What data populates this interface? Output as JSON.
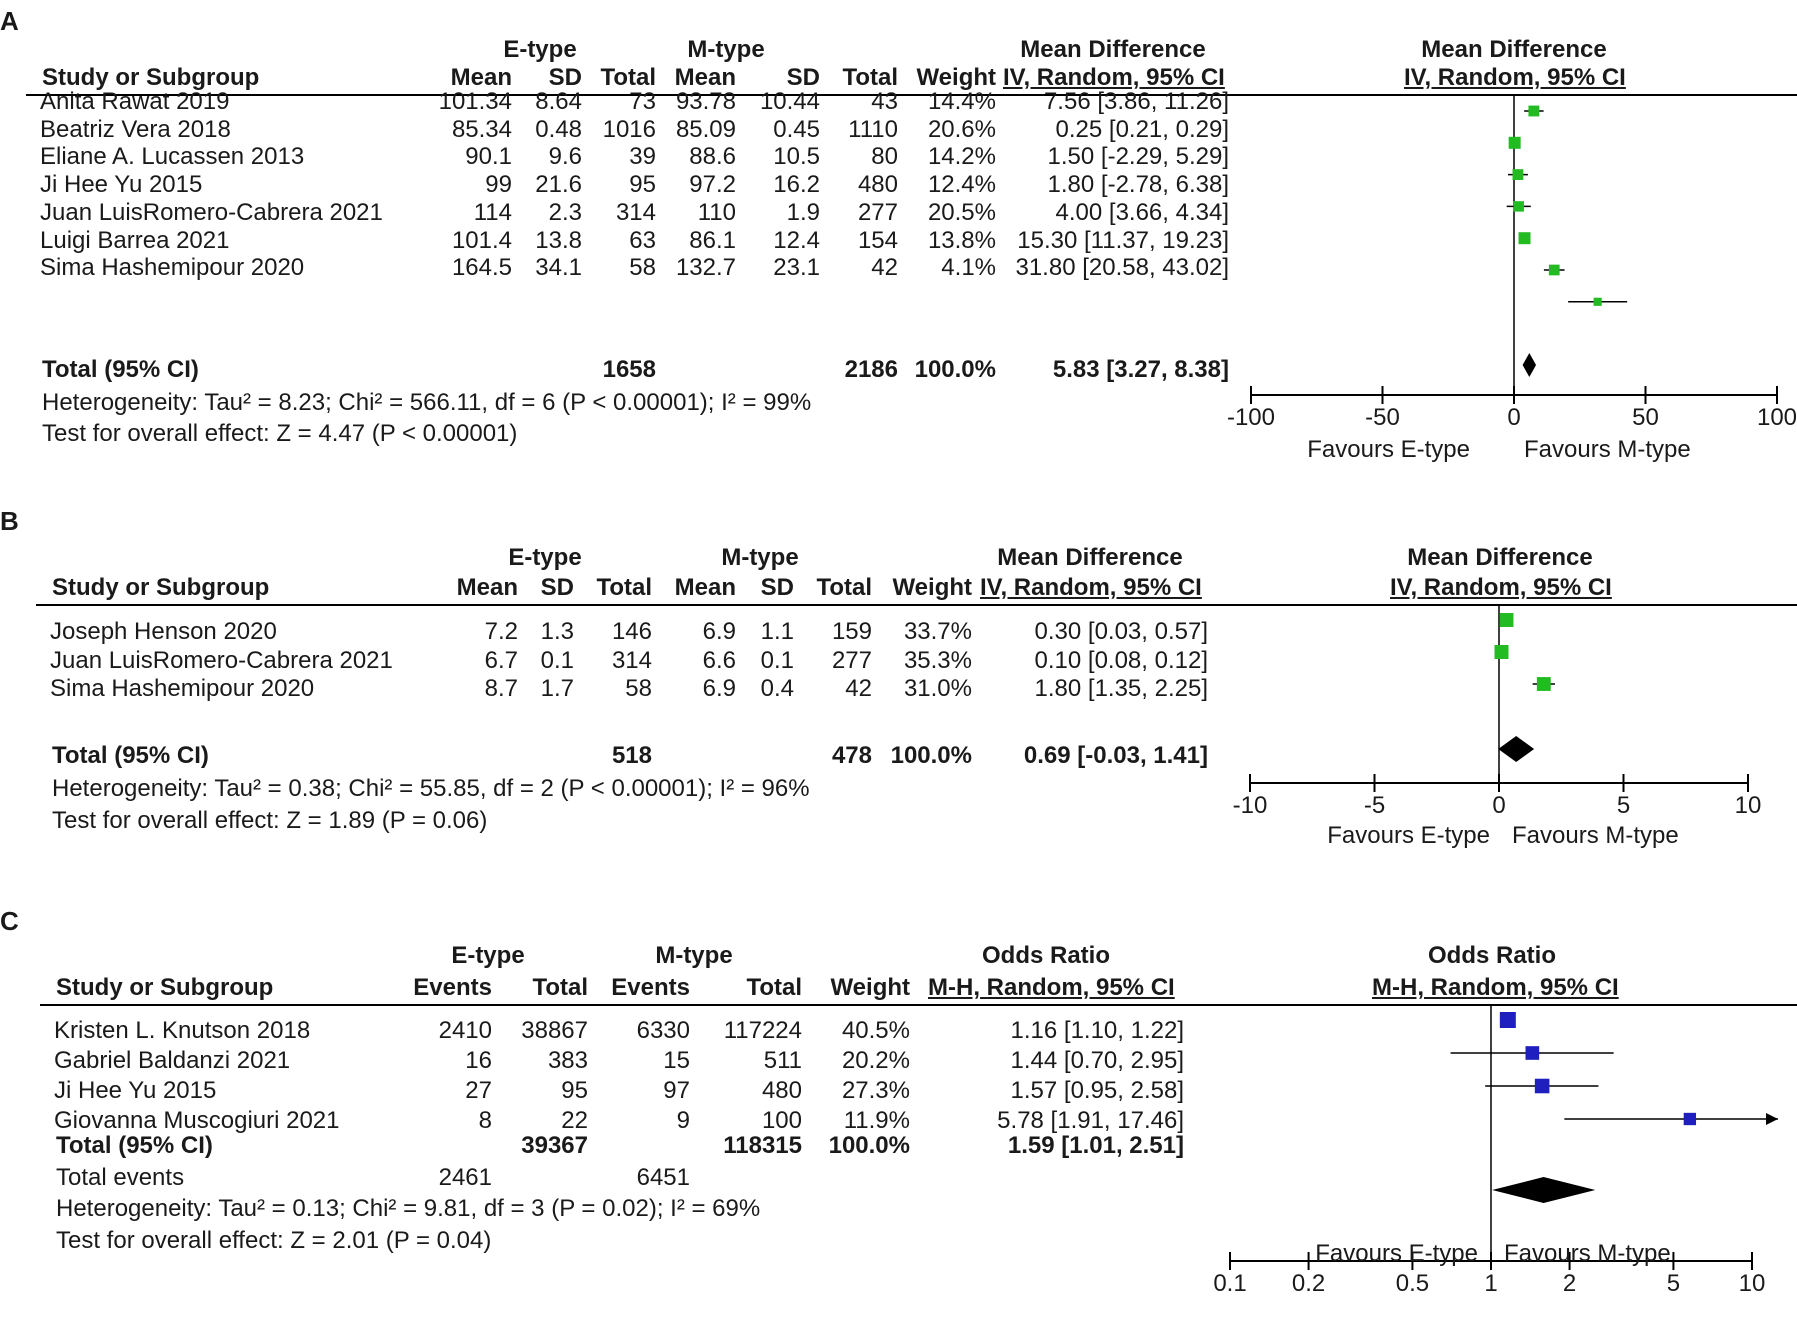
{
  "panelA": {
    "label": "A",
    "group1": "E-type",
    "group2": "M-type",
    "effect_header": "Mean Difference",
    "method": "IV, Random, 95% CI",
    "cols": {
      "study": "Study or Subgroup",
      "mean": "Mean",
      "sd": "SD",
      "total": "Total",
      "weight": "Weight"
    },
    "studies": [
      {
        "name": "Anita Rawat 2019",
        "m1": "101.34",
        "sd1": "8.64",
        "n1": "73",
        "m2": "93.78",
        "sd2": "10.44",
        "n2": "43",
        "weight": "14.4%",
        "ci_text": "7.56 [3.86, 11.26]"
      },
      {
        "name": "Beatriz Vera 2018",
        "m1": "85.34",
        "sd1": "0.48",
        "n1": "1016",
        "m2": "85.09",
        "sd2": "0.45",
        "n2": "1110",
        "weight": "20.6%",
        "ci_text": "0.25 [0.21, 0.29]"
      },
      {
        "name": "Eliane A. Lucassen 2013",
        "m1": "90.1",
        "sd1": "9.6",
        "n1": "39",
        "m2": "88.6",
        "sd2": "10.5",
        "n2": "80",
        "weight": "14.2%",
        "ci_text": "1.50 [-2.29, 5.29]"
      },
      {
        "name": "Ji Hee Yu 2015",
        "m1": "99",
        "sd1": "21.6",
        "n1": "95",
        "m2": "97.2",
        "sd2": "16.2",
        "n2": "480",
        "weight": "12.4%",
        "ci_text": "1.80 [-2.78, 6.38]"
      },
      {
        "name": "Juan LuisRomero-Cabrera 2021",
        "m1": "114",
        "sd1": "2.3",
        "n1": "314",
        "m2": "110",
        "sd2": "1.9",
        "n2": "277",
        "weight": "20.5%",
        "ci_text": "4.00 [3.66, 4.34]"
      },
      {
        "name": "Luigi Barrea 2021",
        "m1": "101.4",
        "sd1": "13.8",
        "n1": "63",
        "m2": "86.1",
        "sd2": "12.4",
        "n2": "154",
        "weight": "13.8%",
        "ci_text": "15.30 [11.37, 19.23]"
      },
      {
        "name": "Sima Hashemipour 2020",
        "m1": "164.5",
        "sd1": "34.1",
        "n1": "58",
        "m2": "132.7",
        "sd2": "23.1",
        "n2": "42",
        "weight": "4.1%",
        "ci_text": "31.80 [20.58, 43.02]"
      }
    ],
    "total": {
      "label": "Total (95% CI)",
      "n1": "1658",
      "n2": "2186",
      "weight": "100.0%",
      "ci_text": "5.83 [3.27, 8.38]"
    },
    "heterogeneity": "Heterogeneity: Tau² = 8.23; Chi² = 566.11, df = 6 (P < 0.00001); I² = 99%",
    "overall": "Test for overall effect: Z = 4.47 (P < 0.00001)",
    "favours_left": "Favours E-type",
    "favours_right": "Favours M-type"
  },
  "panelB": {
    "label": "B",
    "group1": "E-type",
    "group2": "M-type",
    "effect_header": "Mean Difference",
    "method": "IV, Random, 95% CI",
    "cols": {
      "study": "Study or Subgroup",
      "mean": "Mean",
      "sd": "SD",
      "total": "Total",
      "weight": "Weight"
    },
    "studies": [
      {
        "name": "Joseph Henson 2020",
        "m1": "7.2",
        "sd1": "1.3",
        "n1": "146",
        "m2": "6.9",
        "sd2": "1.1",
        "n2": "159",
        "weight": "33.7%",
        "ci_text": "0.30 [0.03, 0.57]"
      },
      {
        "name": "Juan LuisRomero-Cabrera 2021",
        "m1": "6.7",
        "sd1": "0.1",
        "n1": "314",
        "m2": "6.6",
        "sd2": "0.1",
        "n2": "277",
        "weight": "35.3%",
        "ci_text": "0.10 [0.08, 0.12]"
      },
      {
        "name": "Sima Hashemipour 2020",
        "m1": "8.7",
        "sd1": "1.7",
        "n1": "58",
        "m2": "6.9",
        "sd2": "0.4",
        "n2": "42",
        "weight": "31.0%",
        "ci_text": "1.80 [1.35, 2.25]"
      }
    ],
    "total": {
      "label": "Total (95% CI)",
      "n1": "518",
      "n2": "478",
      "weight": "100.0%",
      "ci_text": "0.69 [-0.03, 1.41]"
    },
    "heterogeneity": "Heterogeneity: Tau² = 0.38; Chi² = 55.85, df = 2 (P < 0.00001); I² = 96%",
    "overall": "Test for overall effect: Z = 1.89 (P = 0.06)",
    "favours_left": "Favours E-type",
    "favours_right": "Favours M-type"
  },
  "panelC": {
    "label": "C",
    "group1": "E-type",
    "group2": "M-type",
    "effect_header": "Odds Ratio",
    "method": "M-H, Random, 95% CI",
    "cols": {
      "study": "Study or Subgroup",
      "events": "Events",
      "total": "Total",
      "weight": "Weight"
    },
    "studies": [
      {
        "name": "Kristen L. Knutson 2018",
        "e1": "2410",
        "n1": "38867",
        "e2": "6330",
        "n2": "117224",
        "weight": "40.5%",
        "ci_text": "1.16 [1.10, 1.22]"
      },
      {
        "name": "Gabriel Baldanzi 2021",
        "e1": "16",
        "n1": "383",
        "e2": "15",
        "n2": "511",
        "weight": "20.2%",
        "ci_text": "1.44 [0.70, 2.95]"
      },
      {
        "name": "Ji Hee Yu 2015",
        "e1": "27",
        "n1": "95",
        "e2": "97",
        "n2": "480",
        "weight": "27.3%",
        "ci_text": "1.57 [0.95, 2.58]"
      },
      {
        "name": "Giovanna Muscogiuri 2021",
        "e1": "8",
        "n1": "22",
        "e2": "9",
        "n2": "100",
        "weight": "11.9%",
        "ci_text": "5.78 [1.91, 17.46]"
      }
    ],
    "total": {
      "label": "Total (95% CI)",
      "n1": "39367",
      "n2": "118315",
      "weight": "100.0%",
      "ci_text": "1.59 [1.01, 2.51]"
    },
    "total_events": {
      "label": "Total events",
      "e1": "2461",
      "e2": "6451"
    },
    "heterogeneity": "Heterogeneity: Tau² = 0.13; Chi² = 9.81, df = 3 (P = 0.02); I² = 69%",
    "overall": "Test for overall effect: Z = 2.01 (P = 0.04)",
    "favours_left": "Favours E-type",
    "favours_right": "Favours M-type"
  },
  "chart_data": [
    {
      "type": "forest",
      "title": "A",
      "measure": "Mean Difference (IV, Random, 95% CI)",
      "xlim": [
        -100,
        100
      ],
      "ticks": [
        -100,
        -50,
        0,
        50,
        100
      ],
      "tick_labels": [
        "-100",
        "-50",
        "0",
        "50",
        "100"
      ],
      "marker_color": "#22bb22",
      "points": [
        {
          "study": "Anita Rawat 2019",
          "est": 7.56,
          "lo": 3.86,
          "hi": 11.26,
          "weight": 14.4
        },
        {
          "study": "Beatriz Vera 2018",
          "est": 0.25,
          "lo": 0.21,
          "hi": 0.29,
          "weight": 20.6
        },
        {
          "study": "Eliane A. Lucassen 2013",
          "est": 1.5,
          "lo": -2.29,
          "hi": 5.29,
          "weight": 14.2
        },
        {
          "study": "Ji Hee Yu 2015",
          "est": 1.8,
          "lo": -2.78,
          "hi": 6.38,
          "weight": 12.4
        },
        {
          "study": "Juan LuisRomero-Cabrera 2021",
          "est": 4.0,
          "lo": 3.66,
          "hi": 4.34,
          "weight": 20.5
        },
        {
          "study": "Luigi Barrea 2021",
          "est": 15.3,
          "lo": 11.37,
          "hi": 19.23,
          "weight": 13.8
        },
        {
          "study": "Sima Hashemipour 2020",
          "est": 31.8,
          "lo": 20.58,
          "hi": 43.02,
          "weight": 4.1
        }
      ],
      "pooled": {
        "est": 5.83,
        "lo": 3.27,
        "hi": 8.38
      },
      "xlabel_left": "Favours E-type",
      "xlabel_right": "Favours M-type"
    },
    {
      "type": "forest",
      "title": "B",
      "measure": "Mean Difference (IV, Random, 95% CI)",
      "xlim": [
        -10,
        10
      ],
      "ticks": [
        -10,
        -5,
        0,
        5,
        10
      ],
      "tick_labels": [
        "-10",
        "-5",
        "0",
        "5",
        "10"
      ],
      "marker_color": "#22bb22",
      "points": [
        {
          "study": "Joseph Henson 2020",
          "est": 0.3,
          "lo": 0.03,
          "hi": 0.57,
          "weight": 33.7
        },
        {
          "study": "Juan LuisRomero-Cabrera 2021",
          "est": 0.1,
          "lo": 0.08,
          "hi": 0.12,
          "weight": 35.3
        },
        {
          "study": "Sima Hashemipour 2020",
          "est": 1.8,
          "lo": 1.35,
          "hi": 2.25,
          "weight": 31.0
        }
      ],
      "pooled": {
        "est": 0.69,
        "lo": -0.03,
        "hi": 1.41
      },
      "xlabel_left": "Favours E-type",
      "xlabel_right": "Favours M-type"
    },
    {
      "type": "forest",
      "title": "C",
      "measure": "Odds Ratio (M-H, Random, 95% CI)",
      "scale": "log",
      "xlim": [
        0.1,
        10
      ],
      "ticks": [
        0.1,
        0.2,
        0.5,
        1,
        2,
        5,
        10
      ],
      "tick_labels": [
        "0.1",
        "0.2",
        "0.5",
        "1",
        "2",
        "5",
        "10"
      ],
      "marker_color": "#1f1fbf",
      "points": [
        {
          "study": "Kristen L. Knutson 2018",
          "est": 1.16,
          "lo": 1.1,
          "hi": 1.22,
          "weight": 40.5
        },
        {
          "study": "Gabriel Baldanzi 2021",
          "est": 1.44,
          "lo": 0.7,
          "hi": 2.95,
          "weight": 20.2
        },
        {
          "study": "Ji Hee Yu 2015",
          "est": 1.57,
          "lo": 0.95,
          "hi": 2.58,
          "weight": 27.3
        },
        {
          "study": "Giovanna Muscogiuri 2021",
          "est": 5.78,
          "lo": 1.91,
          "hi": 17.46,
          "weight": 11.9
        }
      ],
      "pooled": {
        "est": 1.59,
        "lo": 1.01,
        "hi": 2.51
      },
      "xlabel_left": "Favours E-type",
      "xlabel_right": "Favours M-type"
    }
  ]
}
